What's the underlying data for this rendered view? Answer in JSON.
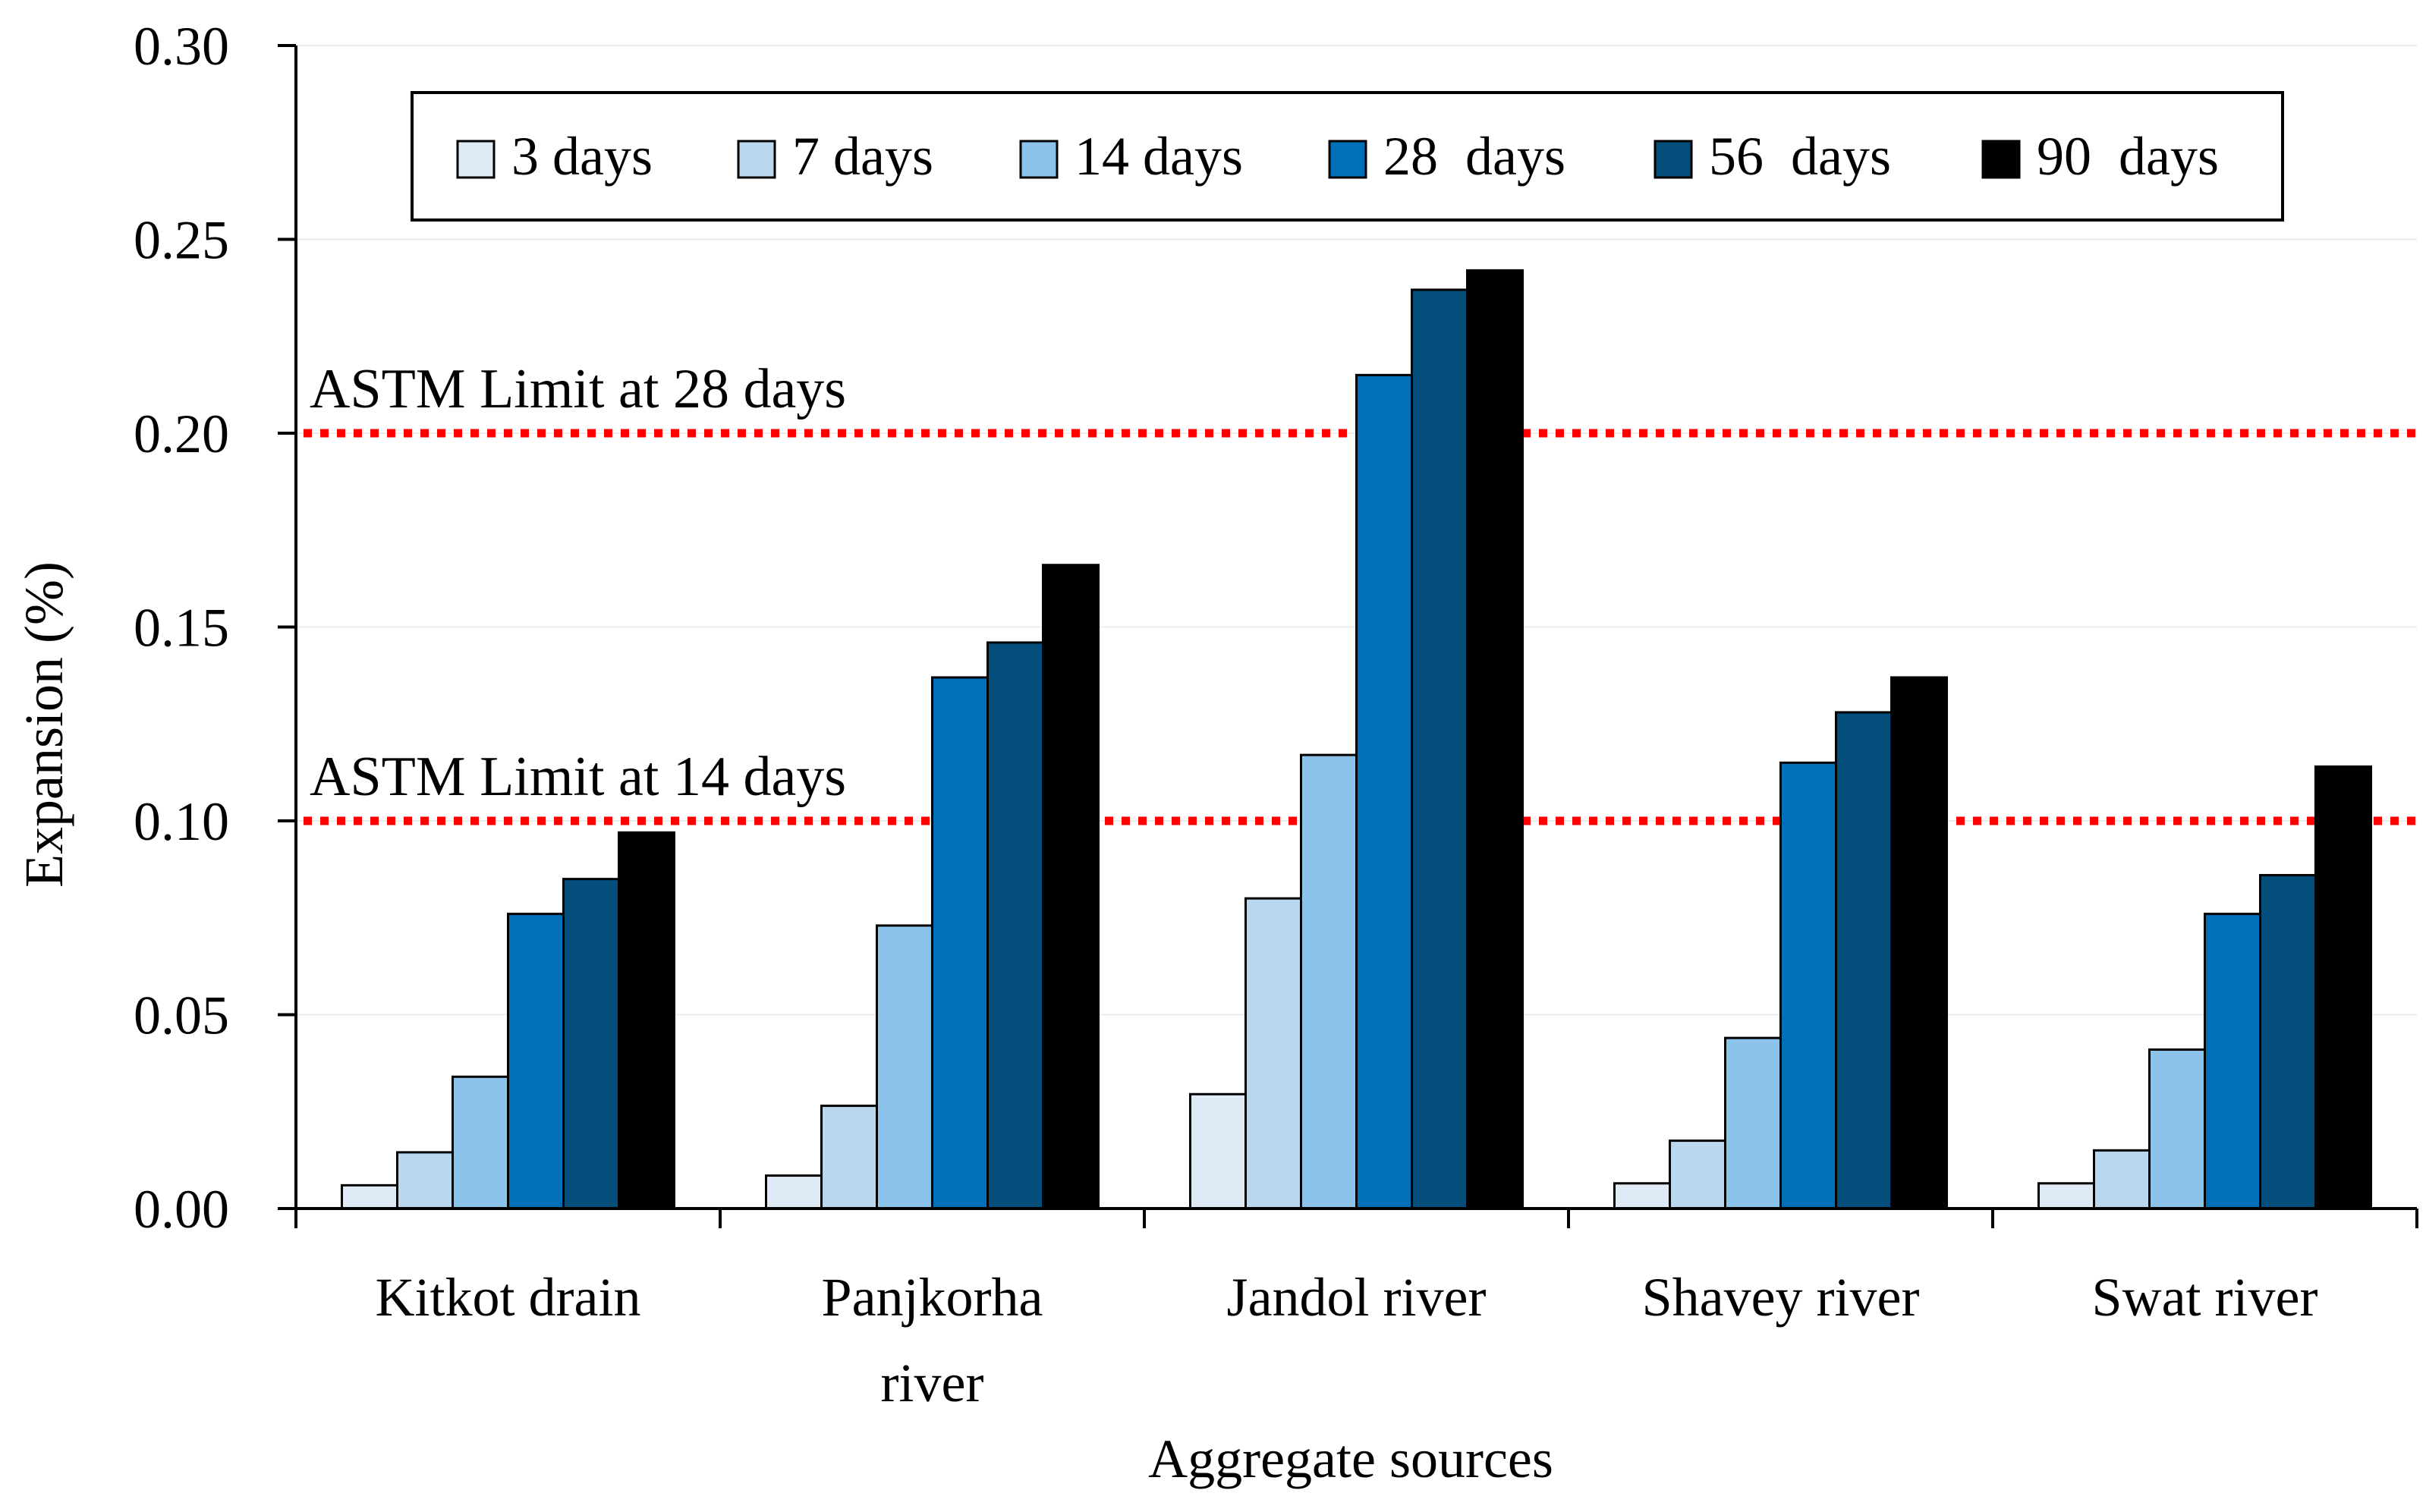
{
  "chart_data": {
    "type": "bar",
    "title": "",
    "xlabel": "Aggregate sources",
    "ylabel": "Expansion (%)",
    "ylim": [
      0,
      0.3
    ],
    "yticks": [
      "0.00",
      "0.05",
      "0.10",
      "0.15",
      "0.20",
      "0.25",
      "0.30"
    ],
    "ytick_values": [
      0,
      0.05,
      0.1,
      0.15,
      0.2,
      0.25,
      0.3
    ],
    "categories": [
      {
        "lines": [
          "Kitkot drain"
        ]
      },
      {
        "lines": [
          "Panjkorha",
          "river"
        ]
      },
      {
        "lines": [
          "Jandol river"
        ]
      },
      {
        "lines": [
          "Shavey river"
        ]
      },
      {
        "lines": [
          "Swat river"
        ]
      }
    ],
    "series": [
      {
        "name": "3 days",
        "color": "#deebf7",
        "values": [
          0.006,
          0.0085,
          0.0295,
          0.0065,
          0.0065
        ]
      },
      {
        "name": "7 days",
        "color": "#b9d8f0",
        "values": [
          0.0145,
          0.0265,
          0.08,
          0.0175,
          0.015
        ]
      },
      {
        "name": "14 days",
        "color": "#8cc3ea",
        "values": [
          0.034,
          0.073,
          0.117,
          0.044,
          0.041
        ]
      },
      {
        "name": "28  days",
        "color": "#0070b8",
        "values": [
          0.076,
          0.137,
          0.215,
          0.115,
          0.076
        ]
      },
      {
        "name": "56  days",
        "color": "#034e7b",
        "values": [
          0.085,
          0.146,
          0.237,
          0.128,
          0.086
        ]
      },
      {
        "name": "90  days",
        "color": "#000000",
        "values": [
          0.097,
          0.166,
          0.242,
          0.137,
          0.114
        ]
      }
    ],
    "reference_lines": [
      {
        "label": "ASTM Limit at 28 days",
        "value": 0.2,
        "color": "#ff0000"
      },
      {
        "label": "ASTM Limit at 14 days",
        "value": 0.1,
        "color": "#ff0000"
      }
    ],
    "legend_position": "top-center",
    "grid": true,
    "grid_color": "#ececec"
  }
}
